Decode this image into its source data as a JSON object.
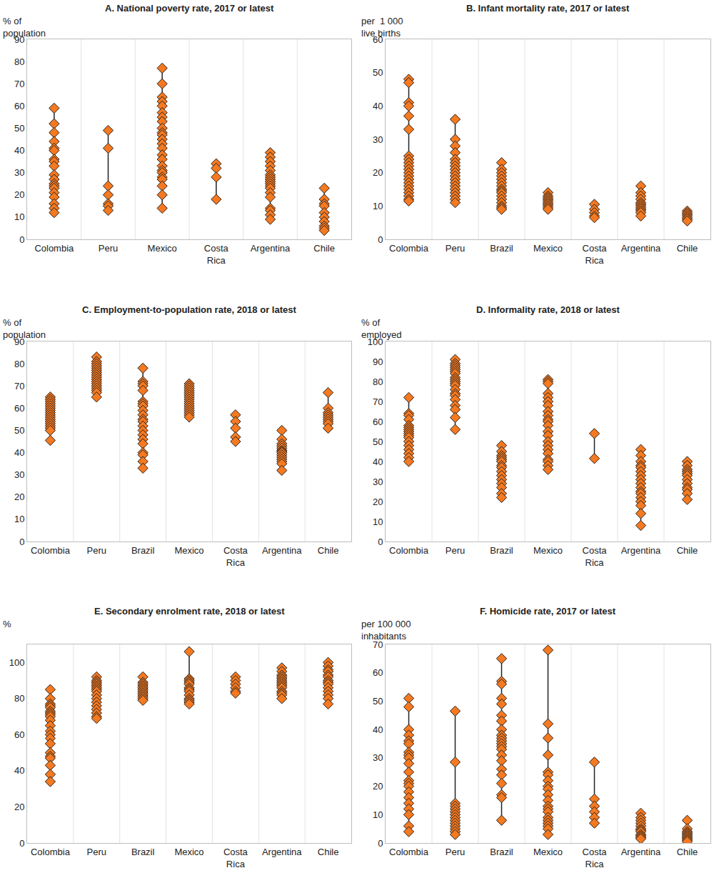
{
  "chart_data": [
    {
      "type": "dotplot",
      "title": "A. National poverty rate, 2017 or latest",
      "ylabel": "% of\npopulation",
      "categories": [
        "Colombia",
        "Peru",
        "Mexico",
        "Costa\nRica",
        "Argentina",
        "Chile"
      ],
      "values": [
        [
          59,
          52,
          48,
          44,
          41,
          40,
          36,
          35,
          33,
          29,
          27,
          25,
          24,
          23,
          21,
          19,
          16,
          14,
          12
        ],
        [
          49,
          41,
          24,
          20,
          16,
          15,
          13
        ],
        [
          77,
          70,
          64,
          62,
          60,
          57,
          55,
          53,
          50,
          48,
          47,
          45,
          43,
          41,
          38,
          36,
          33,
          31,
          30,
          28,
          27,
          24,
          20,
          14
        ],
        [
          34,
          32,
          28,
          18
        ],
        [
          39,
          37,
          35,
          33,
          31,
          29,
          28,
          27,
          26,
          25,
          24,
          23,
          21,
          19,
          14,
          13,
          11,
          9
        ],
        [
          23,
          18,
          16,
          15,
          12,
          10,
          8,
          6,
          5,
          4
        ]
      ],
      "color": "#f47920",
      "marker": "diamond",
      "ylim": [
        0,
        90
      ],
      "yticks": [
        0,
        10,
        20,
        30,
        40,
        50,
        60,
        70,
        80,
        90
      ],
      "grid": false
    },
    {
      "type": "dotplot",
      "title": "B. Infant mortality rate, 2017 or latest",
      "ylabel": "per  1 000\nlive births",
      "categories": [
        "Colombia",
        "Peru",
        "Brazil",
        "Mexico",
        "Costa\nRica",
        "Argentina",
        "Chile"
      ],
      "values": [
        [
          48,
          47,
          41,
          40,
          37,
          33,
          25,
          24,
          23,
          22,
          21,
          20,
          19,
          18,
          17,
          16,
          15,
          14,
          13,
          12,
          11.5
        ],
        [
          36,
          30,
          28,
          26,
          24,
          23,
          22,
          21,
          20,
          19,
          18,
          17,
          16,
          15,
          14,
          13,
          12,
          11
        ],
        [
          23,
          21,
          20,
          19,
          18,
          17,
          16,
          15,
          14.5,
          14,
          13,
          12,
          11,
          10,
          9.5,
          9
        ],
        [
          14,
          13,
          12.5,
          12,
          11.5,
          11,
          10.5,
          10,
          9.5,
          9
        ],
        [
          10.5,
          9,
          8,
          7,
          6.5
        ],
        [
          16,
          14,
          13,
          12,
          11,
          10.5,
          10,
          9.5,
          9,
          8.5,
          8,
          7
        ],
        [
          8.5,
          8,
          7.5,
          7,
          6.5,
          6,
          5.5
        ]
      ],
      "color": "#f47920",
      "marker": "diamond",
      "ylim": [
        0,
        60
      ],
      "yticks": [
        0,
        10,
        20,
        30,
        40,
        50,
        60
      ],
      "grid": false
    },
    {
      "type": "dotplot",
      "title": "C. Employment-to-population rate, 2018 or latest",
      "ylabel": "% of\npopulation",
      "categories": [
        "Colombia",
        "Peru",
        "Brazil",
        "Mexico",
        "Costa\nRica",
        "Argentina",
        "Chile"
      ],
      "values": [
        [
          65,
          64,
          63,
          62,
          61,
          60,
          59,
          58,
          57,
          56,
          55,
          54,
          53,
          52,
          51,
          50,
          45.5
        ],
        [
          83,
          81,
          80,
          79,
          78,
          77,
          76,
          75,
          74,
          73,
          72,
          71,
          70,
          69,
          68,
          67,
          65
        ],
        [
          78,
          72,
          71,
          70,
          68,
          63,
          62,
          61,
          59,
          57,
          55,
          54,
          52,
          50,
          48,
          46,
          44,
          40,
          39,
          36,
          33
        ],
        [
          71,
          70,
          69,
          68,
          67,
          66,
          65,
          64,
          63,
          62,
          61,
          60,
          59,
          58,
          57,
          56
        ],
        [
          57,
          54,
          51,
          47,
          45
        ],
        [
          50,
          46,
          44,
          43,
          42,
          41,
          40.5,
          40,
          39,
          38,
          37,
          36,
          35,
          32
        ],
        [
          67,
          60,
          58,
          57,
          56,
          55,
          54,
          53,
          51
        ]
      ],
      "color": "#f47920",
      "marker": "diamond",
      "ylim": [
        0,
        90
      ],
      "yticks": [
        0,
        10,
        20,
        30,
        40,
        50,
        60,
        70,
        80,
        90
      ],
      "grid": false
    },
    {
      "type": "dotplot",
      "title": "D. Informality rate, 2018 or latest",
      "ylabel": "% of\nemployed",
      "categories": [
        "Colombia",
        "Peru",
        "Brazil",
        "Mexico",
        "Costa\nRica",
        "Argentina",
        "Chile"
      ],
      "values": [
        [
          72,
          64,
          63,
          61,
          58,
          57,
          56,
          55,
          54,
          53,
          52,
          50,
          48,
          46,
          44,
          42,
          40
        ],
        [
          91,
          89,
          88,
          87,
          86,
          85,
          84,
          82,
          81,
          80,
          79,
          78,
          76,
          74,
          73,
          71,
          68,
          66,
          62,
          56
        ],
        [
          48,
          45,
          43,
          42,
          41,
          40,
          38,
          37,
          35,
          33,
          31,
          29,
          27,
          24,
          22
        ],
        [
          81,
          80,
          79,
          74,
          72,
          70,
          68,
          65,
          63,
          61,
          60,
          58,
          55,
          53,
          50,
          48,
          46,
          44,
          41,
          40,
          38,
          36
        ],
        [
          54,
          41.5
        ],
        [
          46,
          43,
          40,
          38,
          37,
          35,
          33,
          31,
          29,
          27,
          25,
          24,
          22,
          20,
          18,
          14,
          8
        ],
        [
          40,
          38,
          36,
          35,
          34,
          33,
          31,
          29,
          27,
          26,
          24,
          21
        ]
      ],
      "color": "#f47920",
      "marker": "diamond",
      "ylim": [
        0,
        100
      ],
      "yticks": [
        0,
        10,
        20,
        30,
        40,
        50,
        60,
        70,
        80,
        90,
        100
      ],
      "grid": false
    },
    {
      "type": "dotplot",
      "title": "E. Secondary enrolment rate, 2018 or latest",
      "ylabel": "%",
      "categories": [
        "Colombia",
        "Peru",
        "Brazil",
        "Mexico",
        "Costa\nRica",
        "Argentina",
        "Chile"
      ],
      "values": [
        [
          85,
          80,
          77,
          76,
          75,
          73,
          72,
          71,
          70,
          68,
          65,
          62,
          60,
          58,
          55,
          50,
          48,
          47,
          43,
          38,
          34
        ],
        [
          92,
          90,
          89,
          88,
          87,
          86,
          85,
          84,
          82,
          80,
          78,
          76,
          74,
          72,
          70,
          69
        ],
        [
          92,
          89,
          88,
          87,
          86,
          85,
          84,
          83,
          82,
          81,
          80,
          79
        ],
        [
          106,
          91,
          90,
          89,
          88,
          86,
          85,
          84,
          82,
          80,
          79,
          78,
          77
        ],
        [
          92,
          90,
          88,
          86,
          84,
          83
        ],
        [
          97,
          95,
          93,
          92,
          91,
          90,
          89,
          88,
          87,
          86,
          84,
          83,
          82,
          80
        ],
        [
          100,
          98,
          96,
          95,
          93,
          92,
          90,
          89,
          88,
          86,
          84,
          82,
          80,
          77
        ]
      ],
      "color": "#f47920",
      "marker": "diamond",
      "ylim": [
        0,
        110
      ],
      "yticks": [
        0,
        20,
        40,
        60,
        80,
        100
      ],
      "grid": false
    },
    {
      "type": "dotplot",
      "title": "F. Homicide rate, 2017 or latest",
      "ylabel": "per 100 000\ninhabitants",
      "categories": [
        "Colombia",
        "Peru",
        "Brazil",
        "Mexico",
        "Costa\nRica",
        "Argentina",
        "Chile"
      ],
      "values": [
        [
          51,
          48,
          40,
          38,
          36,
          35,
          32,
          31,
          30,
          28,
          25,
          22,
          21,
          20,
          18,
          16,
          14,
          12,
          10,
          6,
          4
        ],
        [
          46.5,
          28.5,
          14,
          13,
          12,
          11,
          10,
          9,
          8,
          7,
          6,
          5,
          4,
          3
        ],
        [
          65,
          57,
          56,
          51,
          49,
          45,
          43,
          40,
          38,
          37,
          36,
          35,
          34,
          33,
          31,
          29,
          26,
          24,
          21,
          17,
          16,
          8
        ],
        [
          68,
          42,
          37,
          31,
          25,
          24,
          22,
          20,
          19,
          17,
          15,
          13,
          12,
          11,
          9,
          8,
          7,
          6,
          5,
          3
        ],
        [
          28.5,
          15.5,
          13,
          11,
          9,
          7
        ],
        [
          10.5,
          9,
          8,
          7,
          6,
          5,
          4.5,
          4,
          3,
          2.5,
          2,
          1.5
        ],
        [
          8,
          5,
          4,
          3.5,
          3,
          2.5,
          2,
          1.5,
          1,
          0.5
        ]
      ],
      "color": "#f47920",
      "marker": "diamond",
      "ylim": [
        0,
        70
      ],
      "yticks": [
        0,
        10,
        20,
        30,
        40,
        50,
        60,
        70
      ],
      "grid": false
    }
  ]
}
